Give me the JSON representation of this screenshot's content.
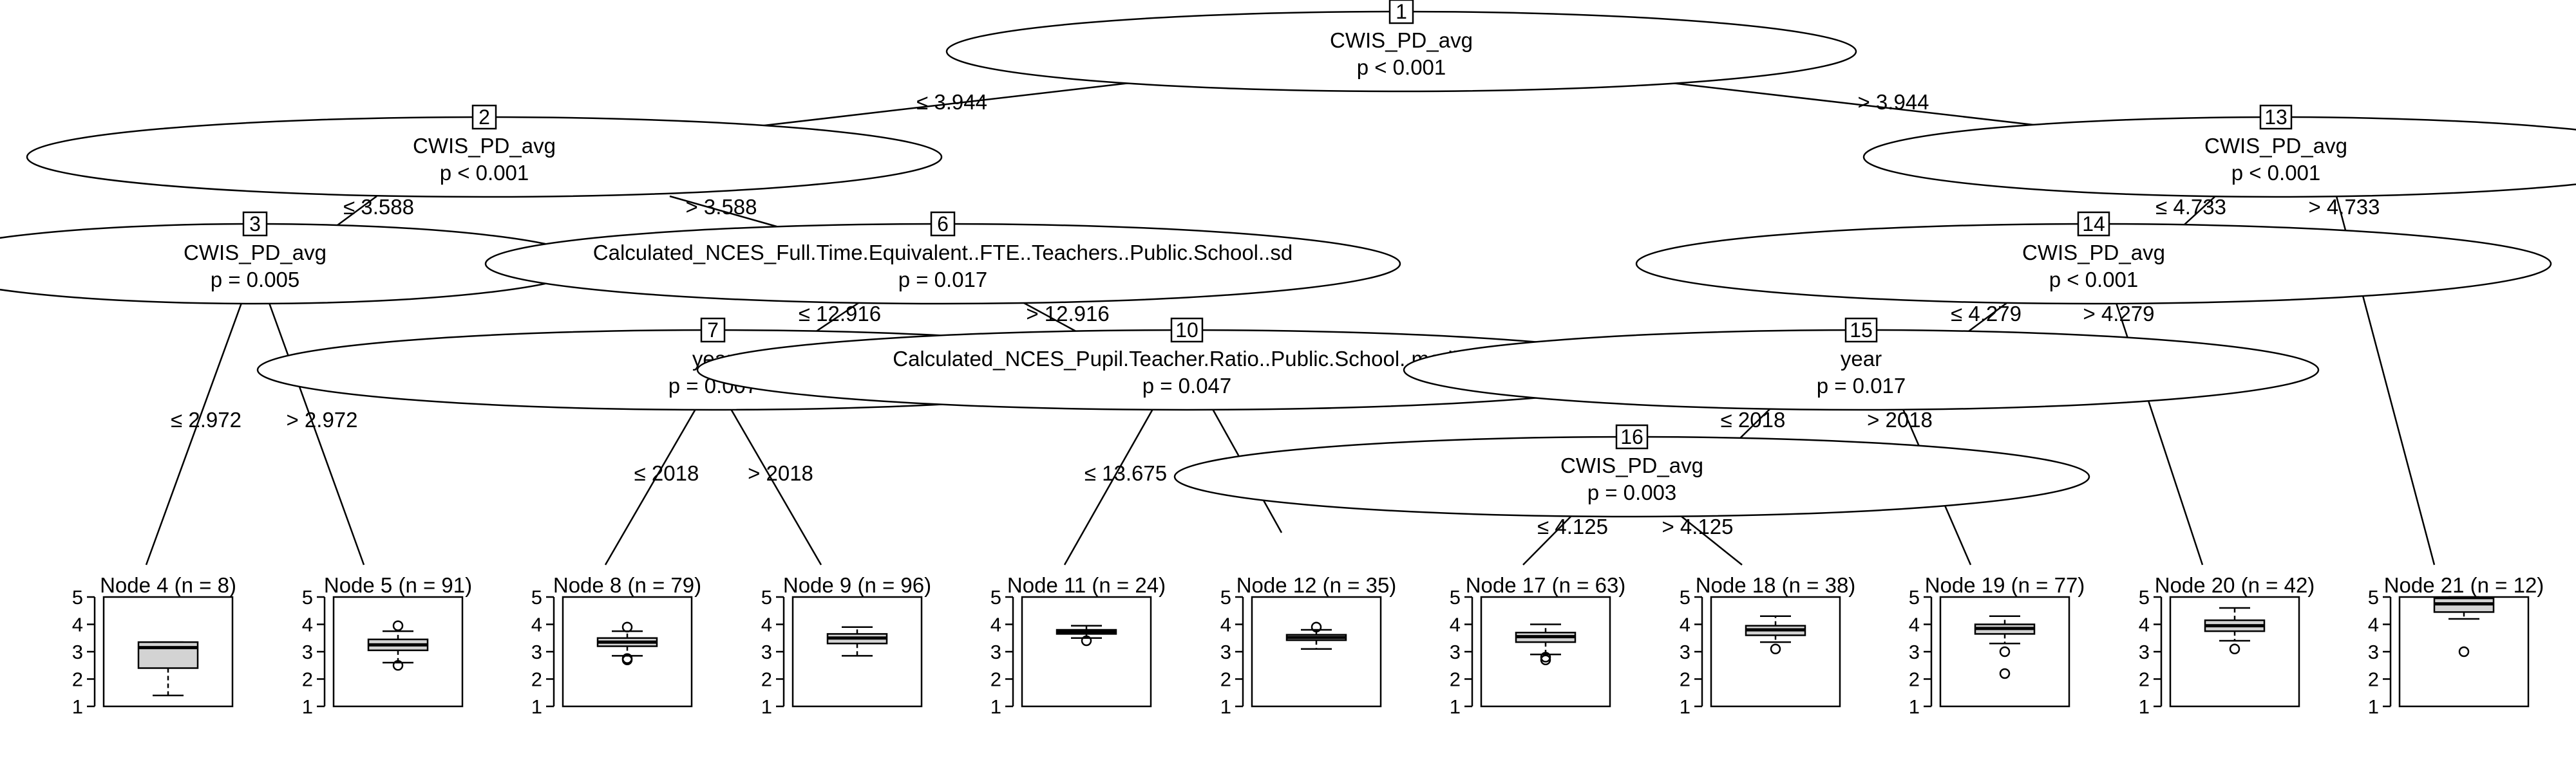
{
  "colors": {
    "box_fill": "#d3d3d3",
    "line": "#000000",
    "background": "#ffffff"
  },
  "y_axis_ticks": [
    "1",
    "2",
    "3",
    "4",
    "5"
  ],
  "inner_nodes": [
    {
      "id": "1",
      "var": "CWIS_PD_avg",
      "p": "p < 0.001"
    },
    {
      "id": "2",
      "var": "CWIS_PD_avg",
      "p": "p < 0.001"
    },
    {
      "id": "3",
      "var": "CWIS_PD_avg",
      "p": "p = 0.005"
    },
    {
      "id": "6",
      "var": "Calculated_NCES_Full.Time.Equivalent..FTE..Teachers..Public.School..sd",
      "p": "p = 0.017"
    },
    {
      "id": "7",
      "var": "year",
      "p": "p = 0.007"
    },
    {
      "id": "10",
      "var": "Calculated_NCES_Pupil.Teacher.Ratio..Public.School..median",
      "p": "p = 0.047"
    },
    {
      "id": "13",
      "var": "CWIS_PD_avg",
      "p": "p < 0.001"
    },
    {
      "id": "14",
      "var": "CWIS_PD_avg",
      "p": "p < 0.001"
    },
    {
      "id": "15",
      "var": "year",
      "p": "p = 0.017"
    },
    {
      "id": "16",
      "var": "CWIS_PD_avg",
      "p": "p = 0.003"
    }
  ],
  "edges": [
    {
      "from": "1",
      "to": "2",
      "label": "≤ 3.944"
    },
    {
      "from": "1",
      "to": "13",
      "label": "> 3.944"
    },
    {
      "from": "2",
      "to": "3",
      "label": "≤ 3.588"
    },
    {
      "from": "2",
      "to": "6",
      "label": "> 3.588"
    },
    {
      "from": "3",
      "to": "4",
      "label": "≤ 2.972"
    },
    {
      "from": "3",
      "to": "5",
      "label": "> 2.972"
    },
    {
      "from": "6",
      "to": "7",
      "label": "≤ 12.916"
    },
    {
      "from": "6",
      "to": "10",
      "label": "> 12.916"
    },
    {
      "from": "7",
      "to": "8",
      "label": "≤ 2018"
    },
    {
      "from": "7",
      "to": "9",
      "label": "> 2018"
    },
    {
      "from": "10",
      "to": "11",
      "label": "≤ 13.675"
    },
    {
      "from": "10",
      "to": "12",
      "label": ""
    },
    {
      "from": "13",
      "to": "14",
      "label": "≤ 4.733"
    },
    {
      "from": "13",
      "to": "21",
      "label": "> 4.733"
    },
    {
      "from": "14",
      "to": "15",
      "label": "≤ 4.279"
    },
    {
      "from": "14",
      "to": "20",
      "label": "> 4.279"
    },
    {
      "from": "15",
      "to": "16",
      "label": "≤ 2018"
    },
    {
      "from": "15",
      "to": "19",
      "label": "> 2018"
    },
    {
      "from": "16",
      "to": "17",
      "label": "≤ 4.125"
    },
    {
      "from": "16",
      "to": "18",
      "label": "> 4.125"
    }
  ],
  "terminal_nodes": [
    {
      "id": "4",
      "title": "Node 4 (n = 8)",
      "box": {
        "lw": 1.4,
        "q1": 2.4,
        "med": 3.15,
        "q3": 3.35,
        "uw": 3.35,
        "outliers": []
      }
    },
    {
      "id": "5",
      "title": "Node 5 (n = 91)",
      "box": {
        "lw": 2.6,
        "q1": 3.05,
        "med": 3.25,
        "q3": 3.45,
        "uw": 3.75,
        "outliers": [
          2.5,
          3.95
        ]
      }
    },
    {
      "id": "8",
      "title": "Node 8 (n = 79)",
      "box": {
        "lw": 2.85,
        "q1": 3.2,
        "med": 3.35,
        "q3": 3.5,
        "uw": 3.75,
        "outliers": [
          2.7,
          2.75,
          3.9
        ]
      }
    },
    {
      "id": "9",
      "title": "Node 9 (n = 96)",
      "box": {
        "lw": 2.85,
        "q1": 3.3,
        "med": 3.5,
        "q3": 3.65,
        "uw": 3.9,
        "outliers": []
      }
    },
    {
      "id": "11",
      "title": "Node 11 (n = 24)",
      "box": {
        "lw": 3.5,
        "q1": 3.65,
        "med": 3.72,
        "q3": 3.8,
        "uw": 3.95,
        "outliers": [
          3.4
        ]
      }
    },
    {
      "id": "12",
      "title": "Node 12 (n = 35)",
      "box": {
        "lw": 3.1,
        "q1": 3.42,
        "med": 3.52,
        "q3": 3.62,
        "uw": 3.8,
        "outliers": [
          3.9
        ]
      }
    },
    {
      "id": "17",
      "title": "Node 17 (n = 63)",
      "box": {
        "lw": 2.9,
        "q1": 3.35,
        "med": 3.55,
        "q3": 3.7,
        "uw": 4.0,
        "outliers": [
          2.7,
          2.8
        ]
      }
    },
    {
      "id": "18",
      "title": "Node 18 (n = 38)",
      "box": {
        "lw": 3.35,
        "q1": 3.6,
        "med": 3.8,
        "q3": 3.95,
        "uw": 4.3,
        "outliers": [
          3.1
        ]
      }
    },
    {
      "id": "19",
      "title": "Node 19 (n = 77)",
      "box": {
        "lw": 3.3,
        "q1": 3.65,
        "med": 3.85,
        "q3": 4.0,
        "uw": 4.3,
        "outliers": [
          3.0,
          2.2
        ]
      }
    },
    {
      "id": "20",
      "title": "Node 20 (n = 42)",
      "box": {
        "lw": 3.4,
        "q1": 3.75,
        "med": 3.95,
        "q3": 4.15,
        "uw": 4.6,
        "outliers": [
          3.1
        ]
      }
    },
    {
      "id": "21",
      "title": "Node 21 (n = 12)",
      "box": {
        "lw": 4.2,
        "q1": 4.45,
        "med": 4.75,
        "q3": 4.95,
        "uw": 5.0,
        "outliers": [
          3.0
        ]
      }
    }
  ]
}
